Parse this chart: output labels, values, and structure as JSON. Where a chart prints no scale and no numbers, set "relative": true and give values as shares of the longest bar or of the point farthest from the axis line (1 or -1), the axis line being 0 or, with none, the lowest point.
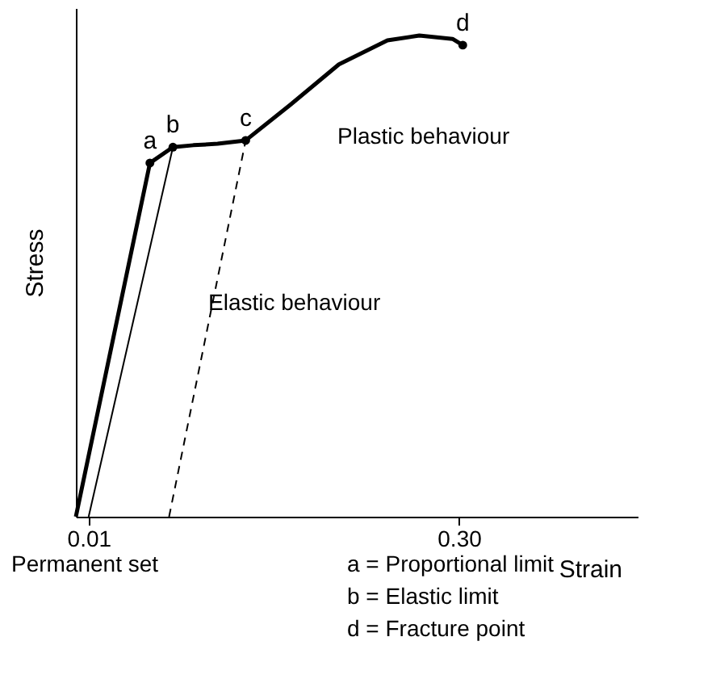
{
  "chart_data": {
    "type": "line",
    "relative": true,
    "xlabel": "Strain",
    "ylabel": "Stress",
    "xlim": [
      0,
      0.44
    ],
    "xticks": [
      0.01,
      {
        "value": 0.3,
        "label": "0.30"
      }
    ],
    "tick_labels": "x",
    "grid": false,
    "marker": "none",
    "series": [
      {
        "color": "#000000",
        "line_style": "solid",
        "x": [
          0,
          0.058,
          0.076,
          0.092,
          0.111,
          0.133,
          0.168,
          0.206,
          0.244,
          0.269,
          0.295,
          0.303
        ],
        "values": [
          0,
          0.735,
          0.768,
          0.772,
          0.775,
          0.782,
          0.856,
          0.94,
          0.99,
          1.0,
          0.993,
          0.98
        ]
      },
      {
        "type": "line",
        "color": "#000000",
        "line_style": "solid",
        "x": [
          0.01,
          0.076
        ],
        "values": [
          0,
          0.768
        ]
      },
      {
        "type": "line",
        "color": "#000000",
        "line_style": "dashed",
        "x": [
          0.073,
          0.133
        ],
        "values": [
          0,
          0.782
        ]
      },
      {
        "type": "scatter",
        "color": "#000000",
        "marker": "circle",
        "x": [
          0.058,
          0.076,
          0.133,
          0.303
        ],
        "values": [
          0.735,
          0.768,
          0.782,
          0.98
        ]
      }
    ],
    "annotations": [
      {
        "text": "a",
        "x": 0.058,
        "y": 0.735
      },
      {
        "text": "b",
        "x": 0.076,
        "y": 0.768
      },
      {
        "text": "c",
        "x": 0.133,
        "y": 0.782
      },
      {
        "text": "d",
        "x": 0.303,
        "y": 0.98
      },
      "Plastic behaviour",
      "Elastic behaviour",
      "Permanent set",
      "a = Proportional limit",
      "b = Elastic limit",
      "d = Fracture point"
    ]
  }
}
